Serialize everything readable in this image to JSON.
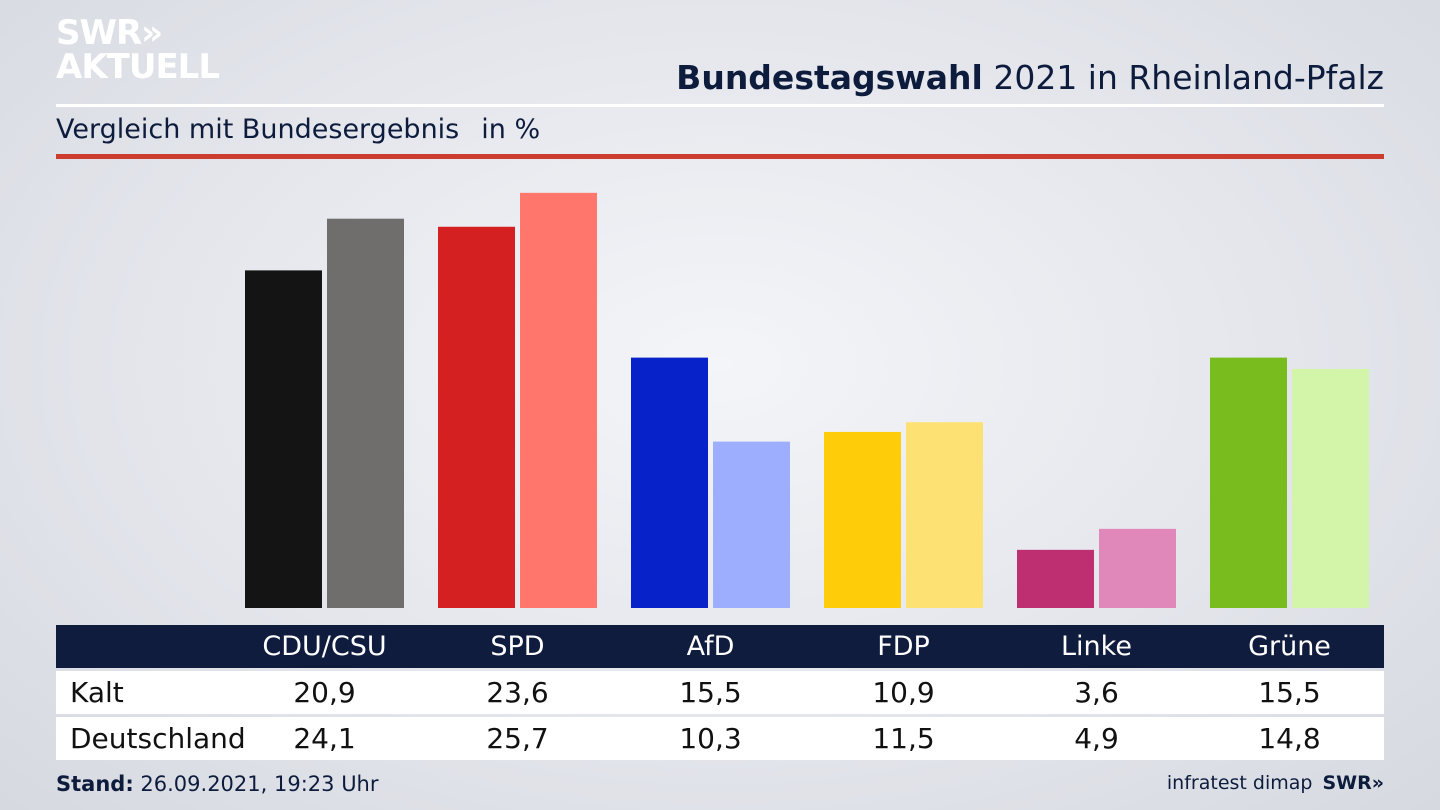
{
  "brand": {
    "logo_line1": "SWR»",
    "logo_line2": "AKTUELL",
    "footer_logo": "SWR»"
  },
  "header": {
    "title_bold": "Bundestagswahl",
    "title_rest": "2021 in Rheinland-Pfalz"
  },
  "subheader": {
    "label": "Vergleich mit Bundesergebnis",
    "unit": "in %"
  },
  "colors": {
    "accent_rule": "#cc3d2f",
    "table_header_bg": "#101c3e"
  },
  "chart_data": {
    "type": "bar",
    "categories": [
      "CDU/CSU",
      "SPD",
      "AfD",
      "FDP",
      "Linke",
      "Grüne"
    ],
    "series": [
      {
        "name": "Kalt",
        "values": [
          20.9,
          23.6,
          15.5,
          10.9,
          3.6,
          15.5
        ],
        "colors": [
          "#141414",
          "#d42020",
          "#0622c8",
          "#ffcc0a",
          "#be2f72",
          "#78bc1e"
        ]
      },
      {
        "name": "Deutschland",
        "values": [
          24.1,
          25.7,
          10.3,
          11.5,
          4.9,
          14.8
        ],
        "colors": [
          "#6f6e6c",
          "#ff766c",
          "#9eaeff",
          "#fde172",
          "#e088ba",
          "#d3f5aa"
        ]
      }
    ],
    "ylim": [
      0,
      26.0
    ],
    "grid": false
  },
  "footer": {
    "stand_label": "Stand:",
    "stand_value": "26.09.2021, 19:23 Uhr",
    "source": "infratest dimap"
  }
}
